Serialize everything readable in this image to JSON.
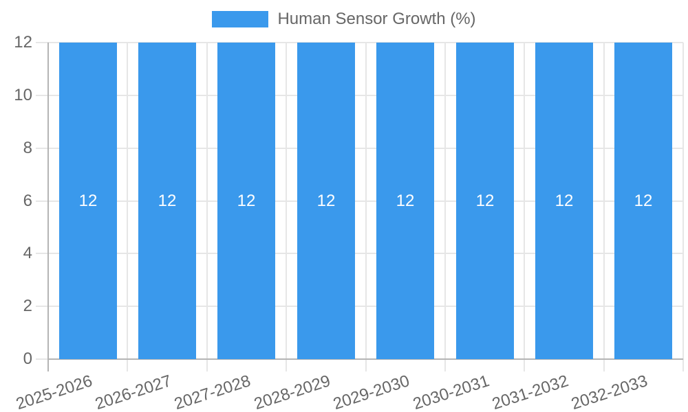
{
  "legend": {
    "label": "Human Sensor Growth (%)"
  },
  "colors": {
    "bar": "#3A99EC",
    "bar_value_label": "#FFFFFF",
    "tick_text": "#666666",
    "grid": "#E6E6E6",
    "axis": "#B4B4B4",
    "background": "#FFFFFF"
  },
  "y_axis": {
    "tick_labels": [
      "0",
      "2",
      "4",
      "6",
      "8",
      "10",
      "12"
    ]
  },
  "x_axis": {
    "tick_labels": [
      "2025-2026",
      "2026-2027",
      "2027-2028",
      "2028-2029",
      "2029-2030",
      "2030-2031",
      "2031-2032",
      "2032-2033"
    ]
  },
  "bars": {
    "value_labels": [
      "12",
      "12",
      "12",
      "12",
      "12",
      "12",
      "12",
      "12"
    ]
  },
  "chart_data": {
    "type": "bar",
    "title": "",
    "categories": [
      "2025-2026",
      "2026-2027",
      "2027-2028",
      "2028-2029",
      "2029-2030",
      "2030-2031",
      "2031-2032",
      "2032-2033"
    ],
    "series": [
      {
        "name": "Human Sensor Growth (%)",
        "values": [
          12,
          12,
          12,
          12,
          12,
          12,
          12,
          12
        ]
      }
    ],
    "xlabel": "",
    "ylabel": "",
    "ylim": [
      0,
      12
    ],
    "yticks": [
      0,
      2,
      4,
      6,
      8,
      10,
      12
    ],
    "grid": true,
    "legend_position": "top",
    "bar_color": "#3A99EC",
    "value_labels_shown": true,
    "value_label_color": "#FFFFFF",
    "x_tick_rotation_deg": -18
  }
}
